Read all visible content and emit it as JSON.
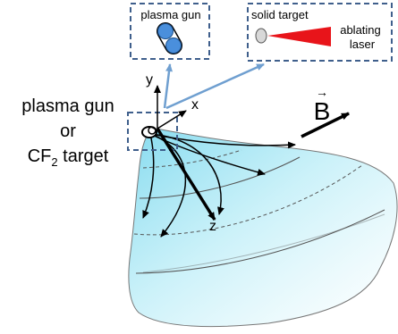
{
  "inset_plasma_gun": {
    "label": "plasma gun"
  },
  "inset_solid_target": {
    "target_label": "solid target",
    "laser_label_line1": "ablating",
    "laser_label_line2": "laser"
  },
  "source_label": {
    "line1": "plasma gun",
    "line2": "or",
    "line3_prefix": "CF",
    "line3_sub": "2",
    "line3_suffix": " target"
  },
  "axes": {
    "x": "x",
    "y": "y",
    "z": "z"
  },
  "field": {
    "symbol": "B",
    "vector_mark": "→"
  },
  "colors": {
    "inset_border": "#3f5f8c",
    "connector": "#6f9fd0",
    "gun_blue": "#4a8fdc",
    "laser_red": "#e8141a",
    "plume_cyan": "#b5ecf7"
  }
}
